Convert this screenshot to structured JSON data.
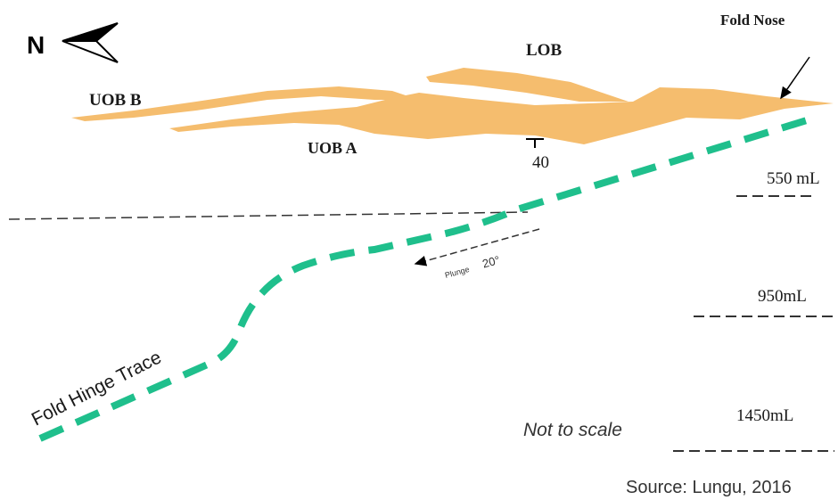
{
  "north": "N",
  "orebodies": {
    "lob": "LOB",
    "uob_b": "UOB B",
    "uob_a": "UOB A"
  },
  "fold_nose": "Fold Nose",
  "dip": "40",
  "levels": [
    "550 mL",
    "950mL",
    "1450mL"
  ],
  "plunge": {
    "word": "Plunge",
    "angle": "20°"
  },
  "hinge_trace": "Fold Hinge Trace",
  "scale_note": "Not to scale",
  "source": "Source: Lungu, 2016"
}
